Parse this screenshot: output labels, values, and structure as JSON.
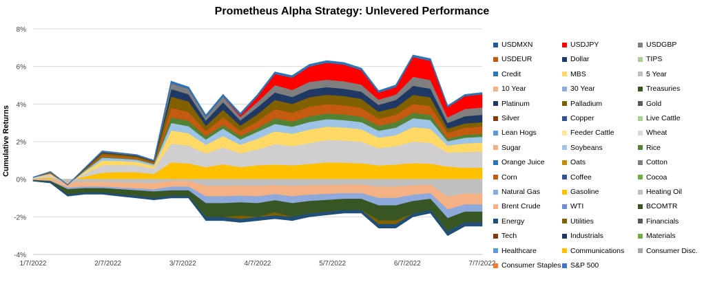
{
  "chart_data": {
    "type": "area",
    "title": "Prometheus Alpha Strategy: Unlevered Performance",
    "xlabel": "",
    "ylabel": "Cumulative Returns",
    "x": [
      "1/7/2022",
      "1/14/2022",
      "1/21/2022",
      "1/28/2022",
      "2/4/2022",
      "2/11/2022",
      "2/18/2022",
      "2/25/2022",
      "3/4/2022",
      "3/11/2022",
      "3/18/2022",
      "3/25/2022",
      "4/1/2022",
      "4/8/2022",
      "4/15/2022",
      "4/22/2022",
      "4/29/2022",
      "5/6/2022",
      "5/13/2022",
      "5/20/2022",
      "5/27/2022",
      "6/3/2022",
      "6/10/2022",
      "6/17/2022",
      "6/24/2022",
      "7/1/2022",
      "7/8/2022"
    ],
    "x_tick_labels": [
      "1/7/2022",
      "2/7/2022",
      "3/7/2022",
      "4/7/2022",
      "5/7/2022",
      "6/7/2022",
      "7/7/2022"
    ],
    "y_tick_labels": [
      "8%",
      "6%",
      "4%",
      "2%",
      "0%",
      "-2%",
      "-4%"
    ],
    "ylim": [
      -0.04,
      0.08
    ],
    "grid": true,
    "legend_position": "right",
    "top_envelope": [
      0.001,
      0.004,
      -0.003,
      0.006,
      0.015,
      0.014,
      0.013,
      0.01,
      0.052,
      0.049,
      0.034,
      0.045,
      0.035,
      0.045,
      0.057,
      0.055,
      0.061,
      0.063,
      0.062,
      0.059,
      0.047,
      0.05,
      0.066,
      0.064,
      0.039,
      0.045,
      0.046
    ],
    "bottom_envelope": [
      -0.001,
      -0.002,
      -0.009,
      -0.008,
      -0.008,
      -0.009,
      -0.01,
      -0.011,
      -0.01,
      -0.01,
      -0.022,
      -0.022,
      -0.023,
      -0.022,
      -0.021,
      -0.022,
      -0.02,
      -0.019,
      -0.018,
      -0.018,
      -0.026,
      -0.026,
      -0.02,
      -0.018,
      -0.03,
      -0.025,
      -0.025
    ],
    "series": [
      {
        "name": "USDMXN",
        "color": "#1F5A96"
      },
      {
        "name": "USDJPY",
        "color": "#FF0000"
      },
      {
        "name": "USDGBP",
        "color": "#7F7F7F"
      },
      {
        "name": "USDEUR",
        "color": "#C55A11"
      },
      {
        "name": "Dollar",
        "color": "#1F3864"
      },
      {
        "name": "TIPS",
        "color": "#A9D18E"
      },
      {
        "name": "Credit",
        "color": "#2E75B6"
      },
      {
        "name": "MBS",
        "color": "#FFD966"
      },
      {
        "name": "5 Year",
        "color": "#BFBFBF"
      },
      {
        "name": "10 Year",
        "color": "#F4B183"
      },
      {
        "name": "30 Year",
        "color": "#8FAADC"
      },
      {
        "name": "Treasuries",
        "color": "#385723"
      },
      {
        "name": "Platinum",
        "color": "#203864"
      },
      {
        "name": "Palladium",
        "color": "#7F6000"
      },
      {
        "name": "Gold",
        "color": "#595959"
      },
      {
        "name": "Silver",
        "color": "#843C0C"
      },
      {
        "name": "Copper",
        "color": "#2F5597"
      },
      {
        "name": "Live Cattle",
        "color": "#A9D08E"
      },
      {
        "name": "Lean Hogs",
        "color": "#5B9BD5"
      },
      {
        "name": "Feeder Cattle",
        "color": "#FFE699"
      },
      {
        "name": "Wheat",
        "color": "#D9D9D9"
      },
      {
        "name": "Sugar",
        "color": "#F4B084"
      },
      {
        "name": "Soybeans",
        "color": "#9DC3E6"
      },
      {
        "name": "Rice",
        "color": "#548235"
      },
      {
        "name": "Orange Juice",
        "color": "#2E75B6"
      },
      {
        "name": "Oats",
        "color": "#BF9000"
      },
      {
        "name": "Cotton",
        "color": "#7F7F7F"
      },
      {
        "name": "Corn",
        "color": "#C55A11"
      },
      {
        "name": "Coffee",
        "color": "#2F5597"
      },
      {
        "name": "Cocoa",
        "color": "#70AD47"
      },
      {
        "name": "Natural Gas",
        "color": "#8EA9DB"
      },
      {
        "name": "Gasoline",
        "color": "#FFC000"
      },
      {
        "name": "Heating Oil",
        "color": "#BFBFBF"
      },
      {
        "name": "Brent Crude",
        "color": "#F4B183"
      },
      {
        "name": "WTI",
        "color": "#6F8FD9"
      },
      {
        "name": "BCOMTR",
        "color": "#375623"
      },
      {
        "name": "Energy",
        "color": "#1F4E79"
      },
      {
        "name": "Utilities",
        "color": "#806000"
      },
      {
        "name": "Financials",
        "color": "#595959"
      },
      {
        "name": "Tech",
        "color": "#843C0C"
      },
      {
        "name": "Industrials",
        "color": "#203864"
      },
      {
        "name": "Materials",
        "color": "#70AD47"
      },
      {
        "name": "Healthcare",
        "color": "#5B9BD5"
      },
      {
        "name": "Communications",
        "color": "#FFC000"
      },
      {
        "name": "Consumer Disc.",
        "color": "#A5A5A5"
      },
      {
        "name": "Consumer Staples",
        "color": "#ED7D31"
      },
      {
        "name": "S&P 500",
        "color": "#4472C4"
      }
    ],
    "positive_stack": [
      {
        "color": "#FFC000",
        "weights": [
          0.2,
          0.2,
          0.1,
          0.5,
          0.7,
          0.9,
          1.0,
          1.0,
          0.9,
          0.9,
          0.7,
          0.8,
          0.7,
          0.8,
          0.8,
          0.8,
          0.8,
          0.9,
          0.9,
          0.9,
          0.8,
          0.8,
          0.9,
          0.9,
          0.9,
          0.8,
          0.8
        ]
      },
      {
        "color": "#D0CECE",
        "weights": [
          0.3,
          0.3,
          0.2,
          0.6,
          0.8,
          0.9,
          1.0,
          1.0,
          1.0,
          1.0,
          0.8,
          0.9,
          0.8,
          0.9,
          1.1,
          1.1,
          1.1,
          1.2,
          1.2,
          1.2,
          1.0,
          1.0,
          1.2,
          1.2,
          1.0,
          1.1,
          1.1
        ]
      },
      {
        "color": "#FFD966",
        "weights": [
          0.1,
          0.1,
          0.1,
          0.3,
          0.5,
          0.5,
          0.5,
          0.5,
          0.7,
          0.7,
          0.5,
          0.6,
          0.5,
          0.6,
          0.7,
          0.7,
          0.7,
          0.7,
          0.7,
          0.7,
          0.6,
          0.6,
          0.8,
          0.8,
          0.5,
          0.6,
          0.6
        ]
      },
      {
        "color": "#9DC3E6",
        "weights": [
          0.1,
          0.1,
          0.1,
          0.2,
          0.3,
          0.3,
          0.3,
          0.3,
          0.4,
          0.4,
          0.3,
          0.4,
          0.3,
          0.4,
          0.4,
          0.4,
          0.4,
          0.4,
          0.4,
          0.4,
          0.4,
          0.4,
          0.5,
          0.5,
          0.3,
          0.4,
          0.4
        ]
      },
      {
        "color": "#548235",
        "weights": [
          0.0,
          0.0,
          0.0,
          0.1,
          0.1,
          0.1,
          0.1,
          0.1,
          0.3,
          0.3,
          0.2,
          0.2,
          0.2,
          0.2,
          0.3,
          0.3,
          0.3,
          0.3,
          0.3,
          0.3,
          0.3,
          0.3,
          0.3,
          0.3,
          0.2,
          0.2,
          0.2
        ]
      },
      {
        "color": "#C55A11",
        "weights": [
          0.0,
          0.1,
          0.0,
          0.1,
          0.2,
          0.2,
          0.2,
          0.2,
          0.5,
          0.5,
          0.3,
          0.4,
          0.3,
          0.4,
          0.5,
          0.5,
          0.5,
          0.5,
          0.5,
          0.5,
          0.4,
          0.4,
          0.5,
          0.5,
          0.4,
          0.5,
          0.5
        ]
      },
      {
        "color": "#806000",
        "weights": [
          0.0,
          0.1,
          0.0,
          0.1,
          0.2,
          0.2,
          0.2,
          0.2,
          0.6,
          0.6,
          0.3,
          0.4,
          0.3,
          0.4,
          0.5,
          0.5,
          0.5,
          0.5,
          0.5,
          0.5,
          0.4,
          0.4,
          0.5,
          0.5,
          0.3,
          0.3,
          0.3
        ]
      },
      {
        "color": "#1F3864",
        "weights": [
          0.0,
          0.0,
          0.0,
          0.1,
          0.1,
          0.1,
          0.1,
          0.1,
          0.4,
          0.4,
          0.3,
          0.4,
          0.3,
          0.4,
          0.4,
          0.4,
          0.4,
          0.4,
          0.4,
          0.4,
          0.4,
          0.4,
          0.5,
          0.5,
          0.4,
          0.5,
          0.5
        ]
      },
      {
        "color": "#7F7F7F",
        "weights": [
          0.0,
          0.0,
          0.0,
          0.1,
          0.1,
          0.1,
          0.1,
          0.1,
          0.3,
          0.3,
          0.2,
          0.3,
          0.2,
          0.3,
          0.4,
          0.4,
          0.4,
          0.4,
          0.4,
          0.4,
          0.3,
          0.3,
          0.5,
          0.5,
          0.4,
          0.5,
          0.5
        ]
      },
      {
        "color": "#FF0000",
        "weights": [
          0.0,
          0.0,
          0.0,
          0.0,
          0.0,
          0.0,
          0.0,
          0.0,
          0.0,
          0.0,
          0.0,
          0.0,
          0.1,
          0.3,
          0.6,
          0.7,
          0.8,
          0.9,
          0.9,
          0.8,
          0.4,
          0.4,
          1.1,
          1.1,
          0.7,
          0.9,
          0.9
        ]
      },
      {
        "color": "#2E75B6",
        "weights": [
          0.0,
          0.0,
          0.0,
          0.0,
          0.0,
          0.0,
          0.0,
          0.0,
          0.1,
          0.1,
          0.1,
          0.1,
          0.1,
          0.1,
          0.1,
          0.1,
          0.1,
          0.1,
          0.1,
          0.1,
          0.1,
          0.1,
          0.1,
          0.1,
          0.1,
          0.1,
          0.1
        ]
      }
    ],
    "negative_stack": [
      {
        "color": "#BFBFBF",
        "weights": [
          0.1,
          0.1,
          0.2,
          0.2,
          0.2,
          0.2,
          0.2,
          0.2,
          0.1,
          0.1,
          0.2,
          0.2,
          0.2,
          0.2,
          0.2,
          0.2,
          0.2,
          0.2,
          0.2,
          0.2,
          0.2,
          0.2,
          0.2,
          0.2,
          0.4,
          0.4,
          0.4
        ]
      },
      {
        "color": "#F4B183",
        "weights": [
          0.3,
          0.3,
          0.3,
          0.3,
          0.3,
          0.3,
          0.3,
          0.3,
          0.3,
          0.3,
          0.3,
          0.3,
          0.3,
          0.3,
          0.3,
          0.3,
          0.3,
          0.3,
          0.3,
          0.3,
          0.3,
          0.3,
          0.3,
          0.3,
          0.3,
          0.3,
          0.3
        ]
      },
      {
        "color": "#8EA9DB",
        "weights": [
          0.1,
          0.1,
          0.1,
          0.1,
          0.1,
          0.1,
          0.1,
          0.1,
          0.2,
          0.2,
          0.2,
          0.2,
          0.2,
          0.2,
          0.2,
          0.2,
          0.2,
          0.2,
          0.2,
          0.2,
          0.2,
          0.2,
          0.2,
          0.2,
          0.2,
          0.2,
          0.2
        ]
      },
      {
        "color": "#375623",
        "weights": [
          0.2,
          0.2,
          0.3,
          0.3,
          0.3,
          0.3,
          0.3,
          0.3,
          0.3,
          0.3,
          0.4,
          0.4,
          0.4,
          0.4,
          0.4,
          0.4,
          0.4,
          0.4,
          0.4,
          0.4,
          0.4,
          0.4,
          0.4,
          0.4,
          0.3,
          0.3,
          0.3
        ]
      },
      {
        "color": "#806000",
        "weights": [
          0.0,
          0.0,
          0.0,
          0.0,
          0.0,
          0.0,
          0.0,
          0.0,
          0.0,
          0.0,
          0.0,
          0.0,
          0.1,
          0.0,
          0.1,
          0.0,
          0.0,
          0.0,
          0.0,
          0.0,
          0.1,
          0.1,
          0.0,
          0.0,
          0.0,
          0.0,
          0.0
        ]
      },
      {
        "color": "#1F4E79",
        "weights": [
          0.3,
          0.3,
          0.1,
          0.1,
          0.1,
          0.1,
          0.1,
          0.1,
          0.1,
          0.1,
          0.1,
          0.1,
          0.1,
          0.1,
          0.1,
          0.1,
          0.1,
          0.1,
          0.1,
          0.1,
          0.1,
          0.1,
          0.1,
          0.1,
          0.1,
          0.1,
          0.1
        ]
      }
    ]
  }
}
